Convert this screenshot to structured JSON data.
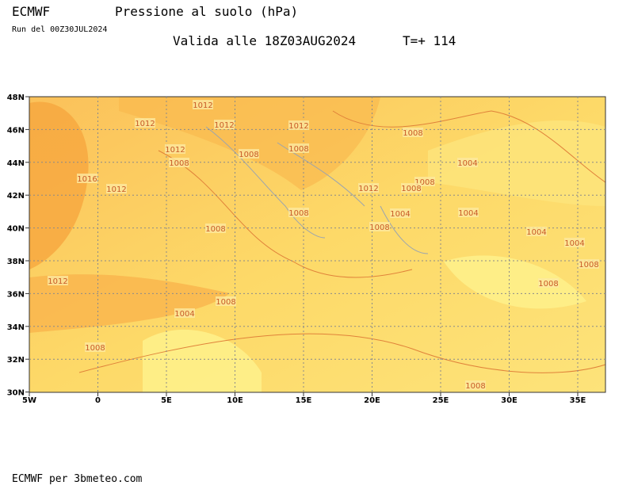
{
  "header": {
    "model": "ECMWF",
    "title": "Pressione al suolo (hPa)",
    "run": "Run del 00Z30JUL2024",
    "valid": "Valida alle 18Z03AUG2024",
    "step": "T=+ 114"
  },
  "map": {
    "xticks": [
      "5W",
      "0",
      "5E",
      "10E",
      "15E",
      "20E",
      "25E",
      "30E",
      "35E"
    ],
    "yticks": [
      "48N",
      "46N",
      "44N",
      "42N",
      "40N",
      "38N",
      "36N",
      "34N",
      "32N",
      "30N"
    ],
    "contour_labels": [
      "1012",
      "1012",
      "1012",
      "1012",
      "1008",
      "1012",
      "1008",
      "1008",
      "1008",
      "1004",
      "1016",
      "1012",
      "1008",
      "1012",
      "1008",
      "1008",
      "1004",
      "1004",
      "1008",
      "1008",
      "1004",
      "1004",
      "1008",
      "1012",
      "1008",
      "1008",
      "1004",
      "1008",
      "1008"
    ]
  },
  "footer": "ECMWF per 3bmeteo.com"
}
